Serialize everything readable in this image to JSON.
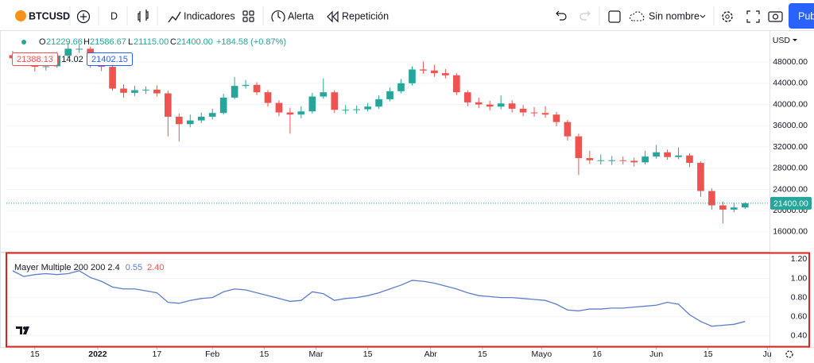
{
  "toolbar": {
    "symbol": "BTCUSD",
    "interval": "D",
    "indicators": "Indicadores",
    "alert": "Alerta",
    "replay": "Repetición",
    "layout_name": "Sin nombre",
    "publish": "Pub"
  },
  "legend": {
    "o_label": "O",
    "open": "21229.66",
    "h_label": "H",
    "high": "21586.67",
    "l_label": "L",
    "low": "21115.00",
    "c_label": "C",
    "close": "21400.00",
    "change": "+184.58 (+0.87%)"
  },
  "order_labels": {
    "sell": "21388.13",
    "spread": "14.02",
    "buy": "21402.15"
  },
  "chart_data": [
    {
      "type": "candlestick",
      "axis_unit": "USD",
      "up_color": "#26a69a",
      "down_color": "#ef5350",
      "grid": true,
      "x": [
        -23,
        -20,
        -17,
        -14,
        -11,
        -8,
        -5,
        -2,
        1,
        4,
        7,
        10,
        13,
        16,
        19,
        22,
        25,
        28,
        31,
        34,
        37,
        40,
        43,
        46,
        49,
        52,
        55,
        58,
        61,
        64,
        67,
        70,
        73,
        76,
        79,
        82,
        85,
        88,
        91,
        94,
        97,
        100,
        103,
        106,
        109,
        112,
        115,
        118,
        121,
        124,
        127,
        130,
        133,
        136,
        139,
        142,
        145,
        148,
        151,
        154,
        157,
        160,
        163,
        166,
        169,
        172,
        175
      ],
      "open": [
        49300,
        48700,
        47900,
        47100,
        47200,
        49200,
        50500,
        50500,
        47400,
        47100,
        43000,
        42200,
        42700,
        42800,
        42100,
        37700,
        36300,
        37000,
        37700,
        38400,
        41300,
        43500,
        43700,
        42300,
        40300,
        38500,
        38100,
        38700,
        41500,
        42300,
        39000,
        39000,
        39100,
        39600,
        41000,
        42500,
        44000,
        46600,
        46400,
        45900,
        45500,
        42300,
        40400,
        40000,
        39600,
        40200,
        39200,
        38500,
        38400,
        38100,
        36700,
        34000,
        29900,
        29500,
        29500,
        29500,
        29400,
        29100,
        30200,
        31000,
        30100,
        30400,
        29000,
        23700,
        21000,
        20200,
        20600
      ],
      "high": [
        50100,
        49400,
        48500,
        48100,
        49900,
        51600,
        51300,
        50900,
        48200,
        47500,
        43800,
        43500,
        43400,
        43600,
        42600,
        38300,
        38100,
        38500,
        39200,
        42000,
        45200,
        44600,
        44200,
        42700,
        40800,
        39400,
        39700,
        42200,
        44900,
        42700,
        39900,
        39800,
        40300,
        41700,
        43200,
        44800,
        47200,
        48100,
        47500,
        46700,
        45900,
        42700,
        41300,
        40700,
        41700,
        40800,
        39900,
        39500,
        39700,
        38600,
        37100,
        34500,
        31300,
        30600,
        30300,
        30200,
        30000,
        31300,
        32400,
        31500,
        31900,
        30800,
        29300,
        24200,
        21700,
        21500,
        21600
      ],
      "low": [
        48000,
        47200,
        46200,
        46400,
        46900,
        48800,
        49700,
        46900,
        46300,
        42600,
        41300,
        41600,
        42000,
        41500,
        34000,
        33000,
        35700,
        36500,
        37200,
        38100,
        41000,
        43000,
        41800,
        39600,
        37800,
        34500,
        37400,
        38300,
        41100,
        38400,
        38200,
        38300,
        38700,
        39200,
        40600,
        42100,
        43600,
        45800,
        45200,
        44900,
        41800,
        39700,
        39300,
        38900,
        39100,
        38500,
        37800,
        37700,
        37500,
        35900,
        33200,
        26700,
        28800,
        28700,
        28600,
        28700,
        28300,
        28700,
        29800,
        29600,
        29700,
        28200,
        22600,
        20200,
        17600,
        19700,
        20300
      ],
      "close": [
        48700,
        47900,
        47100,
        47200,
        49200,
        50500,
        50500,
        47400,
        47100,
        43000,
        42200,
        42700,
        42800,
        42100,
        37700,
        36300,
        37000,
        37700,
        38400,
        41300,
        43500,
        43700,
        42300,
        40300,
        38500,
        38100,
        38700,
        41500,
        42300,
        39000,
        39000,
        39100,
        39600,
        41000,
        42500,
        44000,
        46600,
        46400,
        45900,
        45500,
        42300,
        40400,
        40000,
        39600,
        40200,
        39200,
        38500,
        38400,
        38100,
        36700,
        34000,
        29900,
        29500,
        29500,
        29500,
        29400,
        29100,
        30200,
        31000,
        30100,
        30400,
        29000,
        23700,
        21000,
        20200,
        20600,
        21400
      ],
      "xlim": [
        -24.7,
        181.6
      ],
      "ylim": [
        12400,
        54000
      ],
      "yticks": [
        {
          "value": 48000,
          "label": "48000.00"
        },
        {
          "value": 44000,
          "label": "44000.00"
        },
        {
          "value": 40000,
          "label": "40000.00"
        },
        {
          "value": 36000,
          "label": "36000.00"
        },
        {
          "value": 32000,
          "label": "32000.00"
        },
        {
          "value": 28000,
          "label": "28000.00"
        },
        {
          "value": 24000,
          "label": "24000.00"
        },
        {
          "value": 20000,
          "label": "20000.00"
        },
        {
          "value": 16000,
          "label": "16000.00"
        }
      ],
      "last_price": {
        "value": 21400,
        "label": "21400.00"
      }
    },
    {
      "type": "line",
      "title": "Mayer Multiple 200 200 2.4",
      "legend_values": [
        {
          "text": "0.55",
          "color": "#5d7dcb"
        },
        {
          "text": "2.40",
          "color": "#ef5350"
        }
      ],
      "x": [
        -23,
        -20,
        -17,
        -14,
        -11,
        -8,
        -5,
        -2,
        1,
        4,
        7,
        10,
        13,
        16,
        19,
        22,
        25,
        28,
        31,
        34,
        37,
        40,
        43,
        46,
        49,
        52,
        55,
        58,
        61,
        64,
        67,
        70,
        73,
        76,
        79,
        82,
        85,
        88,
        91,
        94,
        97,
        100,
        103,
        106,
        109,
        112,
        115,
        118,
        121,
        124,
        127,
        130,
        133,
        136,
        139,
        142,
        145,
        148,
        151,
        154,
        157,
        160,
        163,
        166,
        169,
        172,
        175
      ],
      "series": [
        {
          "color": "#5d7dcb",
          "values": [
            1.08,
            1.02,
            1.04,
            1.05,
            1.04,
            1.05,
            1.08,
            1.01,
            0.97,
            0.91,
            0.89,
            0.89,
            0.87,
            0.85,
            0.75,
            0.74,
            0.77,
            0.79,
            0.8,
            0.86,
            0.89,
            0.88,
            0.85,
            0.82,
            0.79,
            0.76,
            0.77,
            0.86,
            0.84,
            0.77,
            0.79,
            0.8,
            0.82,
            0.85,
            0.89,
            0.93,
            0.98,
            0.97,
            0.95,
            0.92,
            0.89,
            0.85,
            0.82,
            0.81,
            0.8,
            0.8,
            0.79,
            0.78,
            0.77,
            0.73,
            0.67,
            0.66,
            0.68,
            0.68,
            0.69,
            0.69,
            0.7,
            0.71,
            0.72,
            0.75,
            0.73,
            0.62,
            0.55,
            0.5,
            0.51,
            0.52,
            0.55
          ]
        }
      ],
      "xlim": [
        -24.7,
        181.6
      ],
      "xticks": [
        {
          "value": -17,
          "label": "15"
        },
        {
          "value": 0,
          "label": "2022"
        },
        {
          "value": 16,
          "label": "17"
        },
        {
          "value": 31,
          "label": "Feb"
        },
        {
          "value": 45,
          "label": "15"
        },
        {
          "value": 59,
          "label": "Mar"
        },
        {
          "value": 73,
          "label": "15"
        },
        {
          "value": 90,
          "label": "Abr"
        },
        {
          "value": 104,
          "label": "15"
        },
        {
          "value": 120,
          "label": "Mayo"
        },
        {
          "value": 135,
          "label": "16"
        },
        {
          "value": 151,
          "label": "Jun"
        },
        {
          "value": 165,
          "label": "15"
        },
        {
          "value": 181,
          "label": "Ju"
        }
      ],
      "ylim": [
        0.29,
        1.27
      ],
      "yticks": [
        {
          "value": 1.2,
          "label": "1.20"
        },
        {
          "value": 1.0,
          "label": "1.00"
        },
        {
          "value": 0.8,
          "label": "0.80"
        },
        {
          "value": 0.6,
          "label": "0.60"
        },
        {
          "value": 0.4,
          "label": "0.40"
        }
      ]
    }
  ]
}
